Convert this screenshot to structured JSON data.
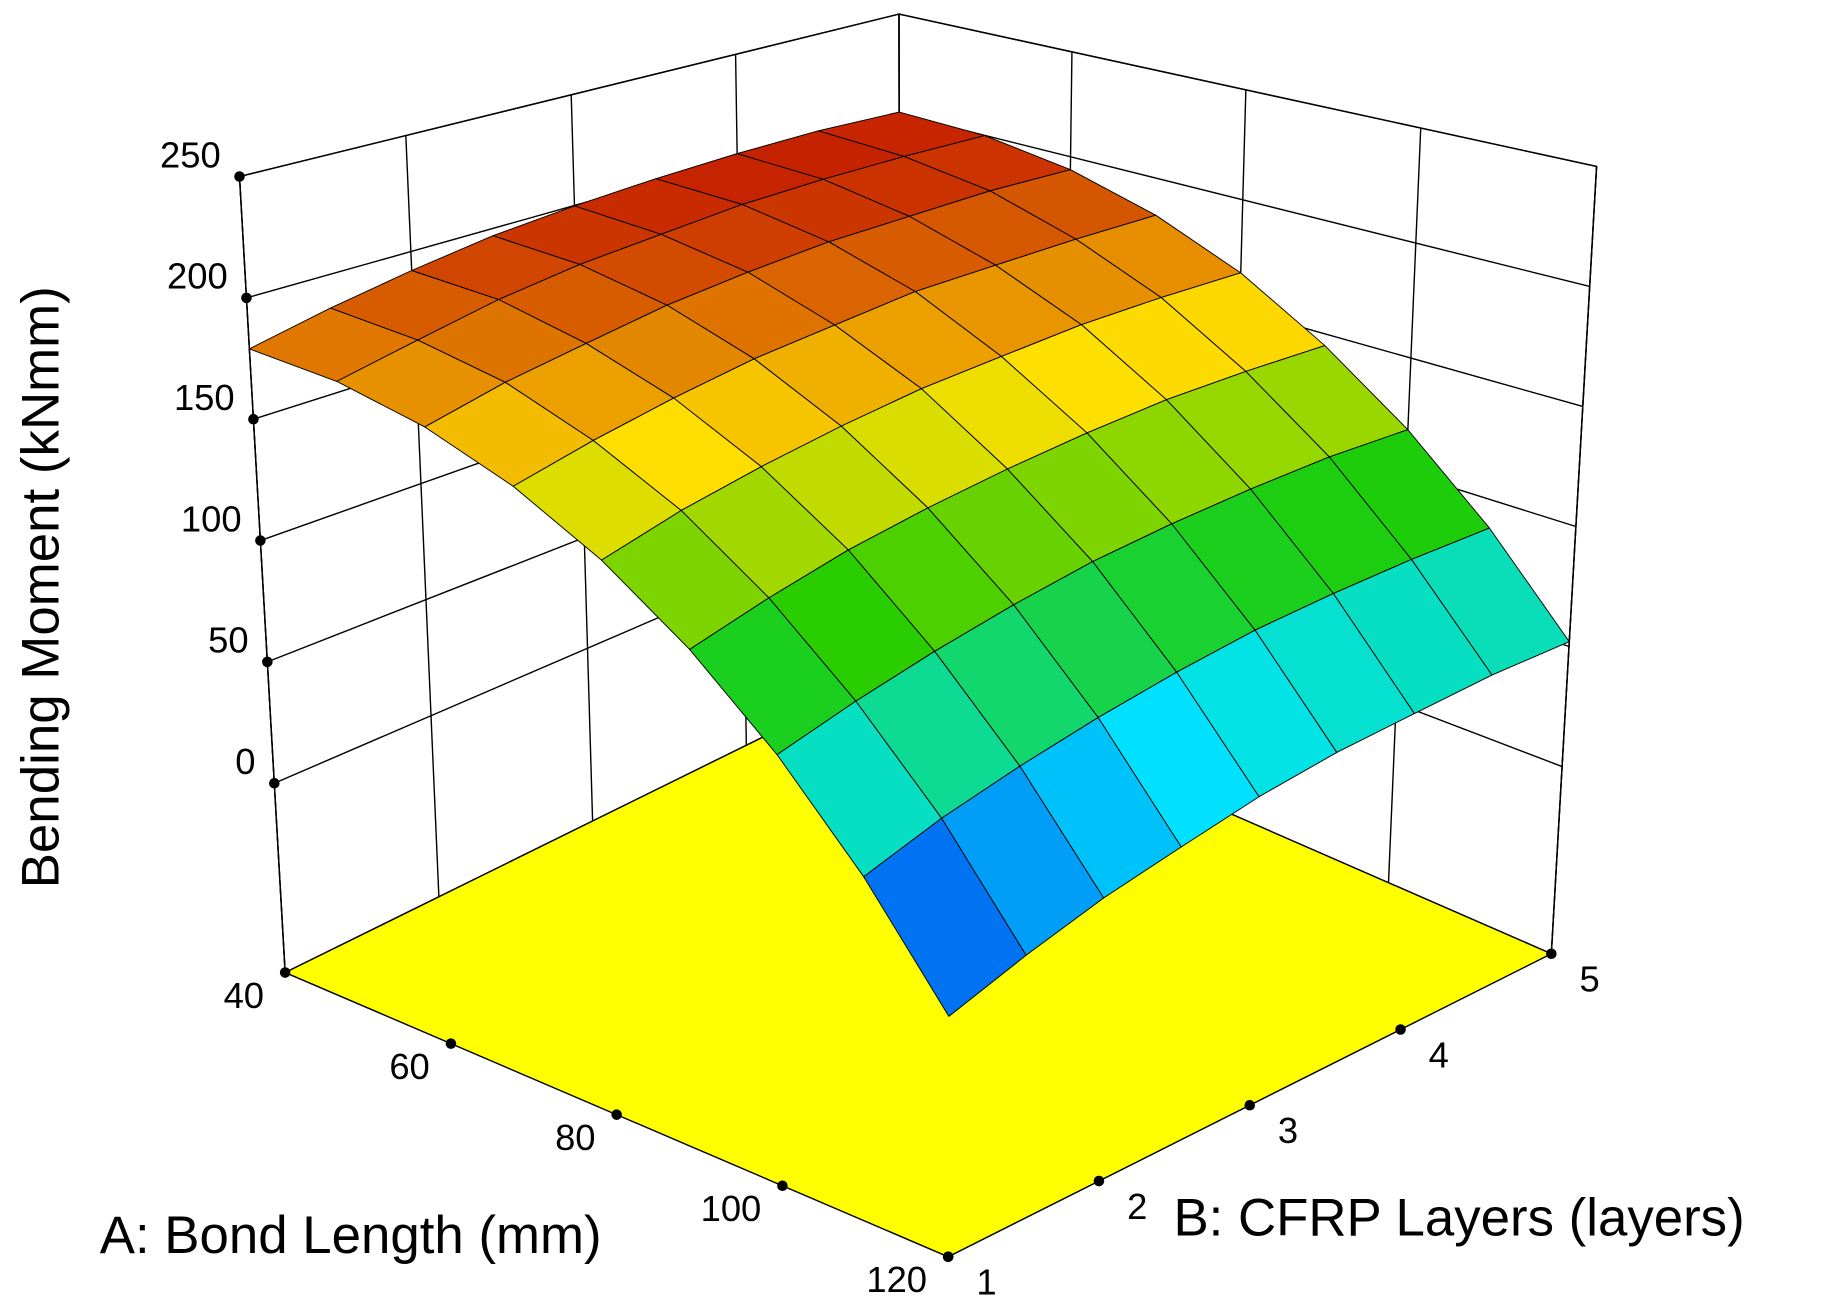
{
  "chart_data": {
    "type": "surface",
    "x_label": "A: Bond Length (mm)",
    "y_label": "B: CFRP Layers (layers)",
    "z_label": "Bending Moment (kNmm)",
    "x": [
      40,
      50,
      60,
      70,
      80,
      90,
      100,
      110,
      120
    ],
    "y": [
      1,
      1.5,
      2,
      2.5,
      3,
      3.5,
      4,
      4.5,
      5
    ],
    "z": [
      [
        179,
        186,
        192,
        197,
        200,
        202,
        203,
        203,
        201
      ],
      [
        175,
        182,
        189,
        194,
        197,
        200,
        201,
        201,
        200
      ],
      [
        166,
        174,
        180,
        186,
        190,
        193,
        194,
        195,
        194
      ],
      [
        152,
        160,
        167,
        173,
        177,
        181,
        182,
        183,
        183
      ],
      [
        133,
        142,
        149,
        155,
        160,
        163,
        166,
        167,
        167
      ],
      [
        109,
        118,
        126,
        132,
        137,
        141,
        144,
        145,
        145
      ],
      [
        80,
        89,
        97,
        104,
        110,
        114,
        117,
        119,
        119
      ],
      [
        46,
        56,
        64,
        71,
        77,
        82,
        85,
        87,
        88
      ],
      [
        7,
        17,
        26,
        33,
        40,
        45,
        48,
        51,
        52
      ]
    ],
    "xlim": [
      40,
      120
    ],
    "xticks": [
      40,
      60,
      80,
      100,
      120
    ],
    "ylim": [
      1,
      5
    ],
    "yticks": [
      1,
      2,
      3,
      4,
      5
    ],
    "zlim": [
      -78,
      250
    ],
    "zticks": [
      0,
      50,
      100,
      150,
      200,
      250
    ],
    "colormap": [
      "#0000e6",
      "#00e5ff",
      "#1fcc00",
      "#ffe000",
      "#c41e00"
    ],
    "floor_color": "#ffff00",
    "grid": true
  }
}
